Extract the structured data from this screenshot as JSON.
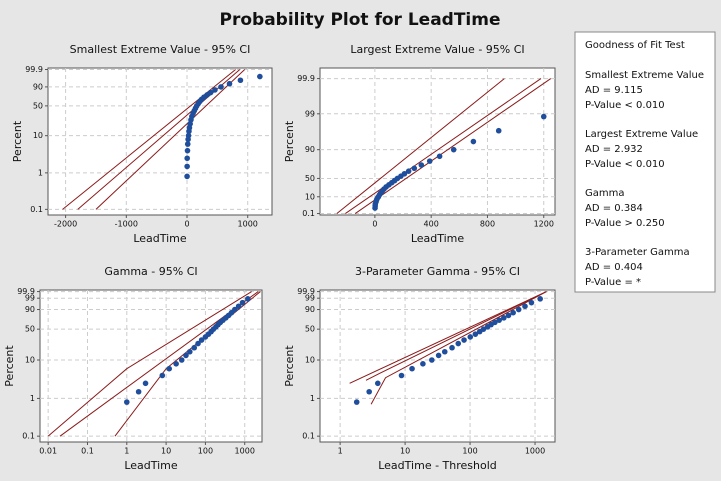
{
  "title": "Probability Plot for LeadTime",
  "chart_data": [
    {
      "type": "probability",
      "title": "Smallest Extreme Value - 95% CI",
      "xlabel": "LeadTime",
      "ylabel": "Percent",
      "xscale": "linear",
      "yscale": "smallest-extreme-value",
      "grid": true,
      "color": "#1f4e9c",
      "line_color": "#8b1a1a",
      "xlim": [
        -2290,
        1400
      ],
      "xticks": [
        -2000,
        -1000,
        0,
        1000
      ],
      "ylim": [
        0.07,
        99.95
      ],
      "yticks": [
        0.1,
        1,
        10,
        50,
        90,
        99.9
      ],
      "x": [
        1,
        2,
        3,
        8,
        12,
        18,
        25,
        32,
        40,
        52,
        65,
        80,
        100,
        120,
        140,
        160,
        185,
        210,
        240,
        280,
        330,
        390,
        460,
        560,
        700,
        880,
        1200
      ],
      "values": [
        0.8,
        1.5,
        2.5,
        4,
        6,
        8,
        10,
        13,
        16,
        20,
        25,
        30,
        35,
        40,
        45,
        50,
        55,
        60,
        65,
        70,
        75,
        80,
        85,
        90,
        94,
        97,
        98.8
      ],
      "fit_lines": [
        {
          "x": [
            -1800,
            870
          ],
          "values": [
            0.1,
            99.9
          ]
        },
        {
          "x": [
            -2050,
            800
          ],
          "values": [
            0.1,
            99.9
          ]
        },
        {
          "x": [
            -1500,
            950
          ],
          "values": [
            0.1,
            99.9
          ]
        }
      ]
    },
    {
      "type": "probability",
      "title": "Largest Extreme Value - 95% CI",
      "xlabel": "LeadTime",
      "ylabel": "Percent",
      "xscale": "linear",
      "yscale": "largest-extreme-value",
      "grid": true,
      "color": "#1f4e9c",
      "line_color": "#8b1a1a",
      "xlim": [
        -390,
        1280
      ],
      "xticks": [
        0,
        400,
        800,
        1200
      ],
      "ylim": [
        0.05,
        99.95
      ],
      "yticks": [
        0.1,
        10,
        50,
        90,
        99,
        99.9
      ],
      "x": [
        1,
        2,
        3,
        8,
        12,
        18,
        25,
        32,
        40,
        52,
        65,
        80,
        100,
        120,
        140,
        160,
        185,
        210,
        240,
        280,
        330,
        390,
        460,
        560,
        700,
        880,
        1200
      ],
      "values": [
        0.8,
        1.5,
        2.5,
        4,
        6,
        8,
        10,
        13,
        16,
        20,
        25,
        30,
        35,
        40,
        45,
        50,
        55,
        60,
        65,
        70,
        75,
        80,
        85,
        90,
        94,
        97,
        98.8
      ],
      "fit_lines": [
        {
          "x": [
            -210,
            1180
          ],
          "values": [
            0.1,
            99.9
          ]
        },
        {
          "x": [
            -270,
            920
          ],
          "values": [
            0.1,
            99.9
          ]
        },
        {
          "x": [
            -140,
            1250
          ],
          "values": [
            0.1,
            99.9
          ]
        }
      ]
    },
    {
      "type": "probability",
      "title": "Gamma - 95% CI",
      "xlabel": "LeadTime",
      "ylabel": "Percent",
      "xscale": "log",
      "yscale": "smallest-extreme-value",
      "grid": true,
      "color": "#1f4e9c",
      "line_color": "#8b1a1a",
      "xlim": [
        0.0062,
        2750
      ],
      "xticks": [
        0.01,
        0.1,
        1,
        10,
        100,
        1000
      ],
      "ylim": [
        0.07,
        99.95
      ],
      "yticks": [
        0.1,
        1,
        10,
        50,
        90,
        99,
        99.9
      ],
      "x": [
        1,
        2,
        3,
        8,
        12,
        18,
        25,
        32,
        40,
        52,
        65,
        80,
        100,
        120,
        140,
        160,
        185,
        210,
        240,
        280,
        330,
        390,
        460,
        560,
        700,
        880,
        1200
      ],
      "values": [
        0.8,
        1.5,
        2.5,
        4,
        6,
        8,
        10,
        13,
        16,
        20,
        25,
        30,
        35,
        40,
        45,
        50,
        55,
        60,
        65,
        70,
        75,
        80,
        85,
        90,
        94,
        97,
        98.8
      ],
      "fit_lines": [
        {
          "x": [
            0.02,
            2200
          ],
          "values": [
            0.1,
            99.9
          ]
        },
        {
          "x": [
            0.01,
            1,
            1500
          ],
          "values": [
            0.1,
            6,
            99.9
          ]
        },
        {
          "x": [
            0.5,
            10,
            2500
          ],
          "values": [
            0.1,
            6,
            99.9
          ]
        }
      ]
    },
    {
      "type": "probability",
      "title": "3-Parameter Gamma - 95% CI",
      "xlabel": "LeadTime - Threshold",
      "ylabel": "Percent",
      "xscale": "log",
      "yscale": "smallest-extreme-value",
      "grid": true,
      "color": "#1f4e9c",
      "line_color": "#8b1a1a",
      "xlim": [
        0.49,
        2030
      ],
      "xticks": [
        1,
        10,
        100,
        1000
      ],
      "ylim": [
        0.07,
        99.95
      ],
      "yticks": [
        0.1,
        1,
        10,
        50,
        90,
        99,
        99.9
      ],
      "x": [
        1.8,
        2.8,
        3.8,
        8.8,
        12.8,
        18.8,
        25.8,
        32.8,
        40.8,
        52.8,
        65.8,
        80.8,
        100.8,
        120.8,
        140.8,
        160.8,
        185.8,
        210.8,
        240.8,
        280.8,
        330.8,
        390.8,
        460.8,
        560.8,
        700.8,
        880.8,
        1200.8
      ],
      "values": [
        0.8,
        1.5,
        2.5,
        4,
        6,
        8,
        10,
        13,
        16,
        20,
        25,
        30,
        35,
        40,
        45,
        50,
        55,
        60,
        65,
        70,
        75,
        80,
        85,
        90,
        94,
        97,
        98.8
      ],
      "fit_lines": [
        {
          "x": [
            1.4,
            1500
          ],
          "values": [
            2.5,
            99.9
          ]
        },
        {
          "x": [
            3,
            5,
            1500
          ],
          "values": [
            0.7,
            3.5,
            99.9
          ]
        },
        {
          "x": [
            2.5,
            4,
            1500
          ],
          "values": [
            3,
            4.5,
            99.9
          ]
        }
      ]
    }
  ],
  "goodness_of_fit": {
    "title": "Goodness of Fit Test",
    "tests": [
      {
        "name": "Smallest Extreme Value",
        "ad": "AD = 9.115",
        "p": "P-Value < 0.010"
      },
      {
        "name": "Largest Extreme Value",
        "ad": "AD = 2.932",
        "p": "P-Value < 0.010"
      },
      {
        "name": "Gamma",
        "ad": "AD = 0.384",
        "p": "P-Value > 0.250"
      },
      {
        "name": "3-Parameter Gamma",
        "ad": "AD = 0.404",
        "p": "P-Value = *"
      }
    ]
  }
}
